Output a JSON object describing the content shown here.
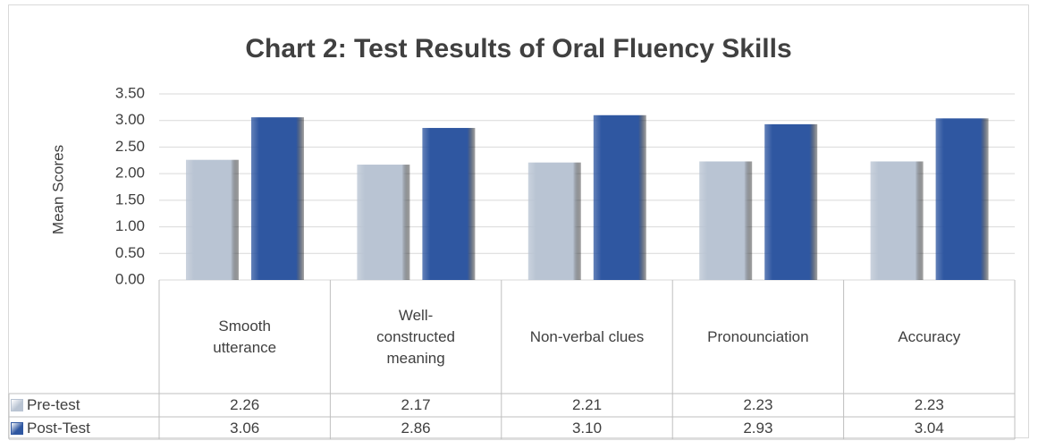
{
  "chart_data": {
    "type": "bar",
    "title": "Chart 2: Test Results of Oral Fluency Skills",
    "y_label": "Mean Scores",
    "categories": [
      "Smooth utterance",
      "Well-constructed meaning",
      "Non-verbal clues",
      "Pronounciation",
      "Accuracy"
    ],
    "series": [
      {
        "name": "Pre-test",
        "color": "#b9c4d3",
        "values": [
          2.26,
          2.17,
          2.21,
          2.23,
          2.23
        ],
        "value_labels": [
          "2.26",
          "2.17",
          "2.21",
          "2.23",
          "2.23"
        ]
      },
      {
        "name": "Post-Test",
        "color": "#2f57a1",
        "values": [
          3.06,
          2.86,
          3.1,
          2.93,
          3.04
        ],
        "value_labels": [
          "3.06",
          "2.86",
          "3.10",
          "2.93",
          "3.04"
        ]
      }
    ],
    "ylim": [
      0,
      3.5
    ],
    "yticks": [
      {
        "value": 0,
        "label": "0.00"
      },
      {
        "value": 0.5,
        "label": "0.50"
      },
      {
        "value": 1,
        "label": "1.00"
      },
      {
        "value": 1.5,
        "label": "1.50"
      },
      {
        "value": 2,
        "label": "2.00"
      },
      {
        "value": 2.5,
        "label": "2.50"
      },
      {
        "value": 3,
        "label": "3.00"
      },
      {
        "value": 3.5,
        "label": "3.50"
      }
    ],
    "grid": true,
    "legend": "data-table"
  }
}
